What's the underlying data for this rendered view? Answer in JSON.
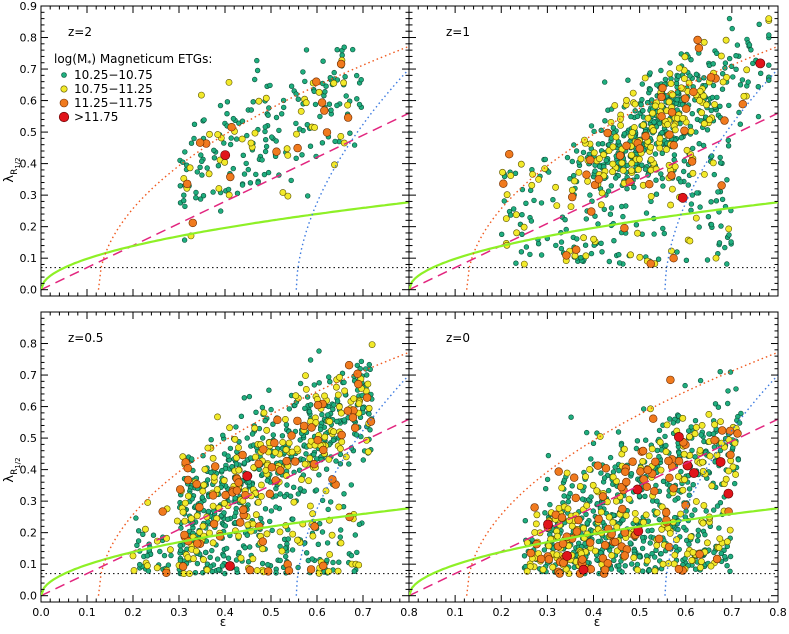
{
  "chart_data": {
    "type": "scatter",
    "layout": "2x2",
    "xlabel": "ε",
    "ylabel_main": "λ",
    "ylabel_sub": "R",
    "ylabel_subsub": "1/2",
    "xlim": [
      0.0,
      0.8
    ],
    "ylim": [
      -0.02,
      0.9
    ],
    "xticks": [
      "0.0",
      "0.1",
      "0.2",
      "0.3",
      "0.4",
      "0.5",
      "0.6",
      "0.7",
      "0.8"
    ],
    "yticks": [
      "0.0",
      "0.1",
      "0.2",
      "0.3",
      "0.4",
      "0.5",
      "0.6",
      "0.7",
      "0.8",
      "0.9"
    ],
    "legend": {
      "title": "log(M",
      "title_sub": "*",
      "title_rest": ") Magneticum ETGs:",
      "entries": [
        {
          "label": "10.25−10.75",
          "color": "#1fae7e"
        },
        {
          "label": "10.75−11.25",
          "color": "#f2e92a"
        },
        {
          "label": "11.25−11.75",
          "color": "#f07a1e"
        },
        {
          "label": ">11.75",
          "color": "#e0141a"
        }
      ]
    },
    "reference_lines": {
      "green_curve": {
        "color": "#8ef026",
        "formula": "0.31*sqrt(eps)"
      },
      "magenta_dashed": {
        "color": "#e2267f",
        "from": [
          0.0,
          0.0
        ],
        "to": [
          0.8,
          0.56
        ]
      },
      "black_dotted": {
        "color": "#000000",
        "y": 0.07
      },
      "orange_dotted": {
        "color": "#f0591e",
        "note": "edge-on isotropic rotator boundary"
      },
      "blue_dotted": {
        "color": "#3c7ae0",
        "note": "steep line near eps 0.55"
      }
    },
    "panels": [
      {
        "label": "z=2",
        "position": "top-left",
        "counts": {
          "green": 170,
          "yellow": 40,
          "orange": 14,
          "red": 1
        }
      },
      {
        "label": "z=1",
        "position": "top-right",
        "counts": {
          "green": 560,
          "yellow": 190,
          "orange": 40,
          "red": 2
        }
      },
      {
        "label": "z=0.5",
        "position": "bottom-left",
        "counts": {
          "green": 620,
          "yellow": 230,
          "orange": 70,
          "red": 2
        }
      },
      {
        "label": "z=0",
        "position": "bottom-right",
        "counts": {
          "green": 560,
          "yellow": 230,
          "orange": 90,
          "red": 10
        }
      }
    ]
  }
}
